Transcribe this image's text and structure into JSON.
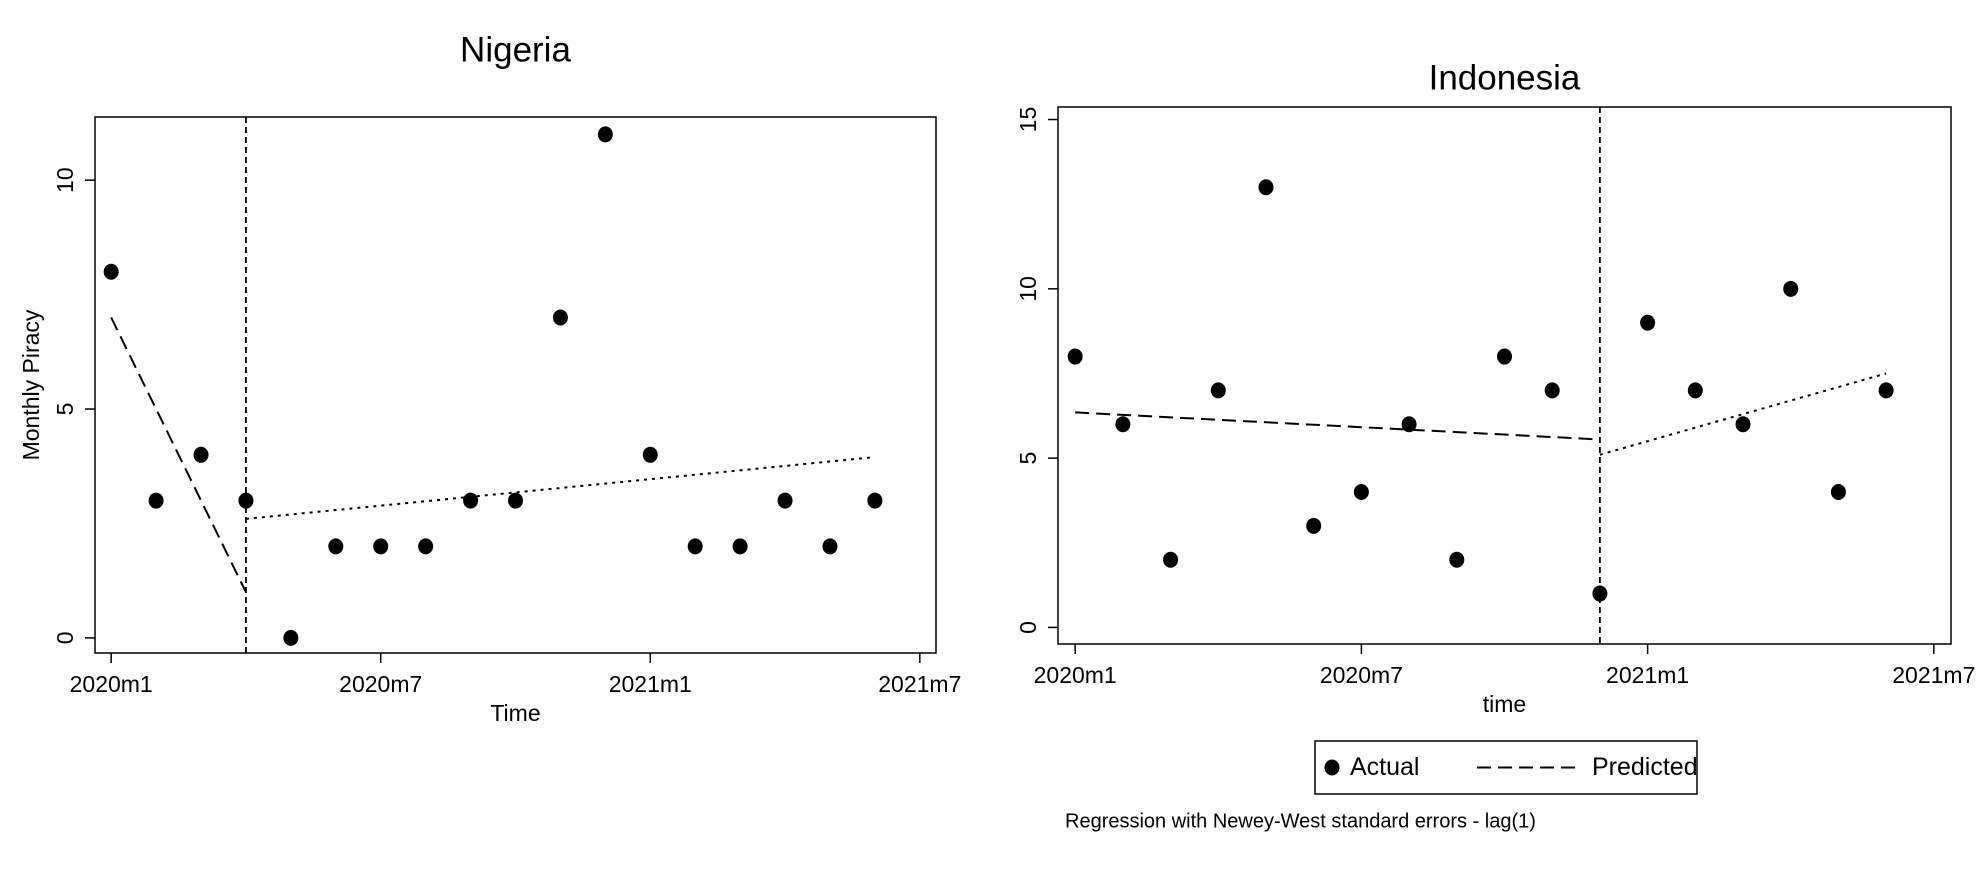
{
  "chart_data": [
    {
      "type": "scatter",
      "title": "Nigeria",
      "x_label": "Time",
      "y_label": "Monthly Piracy",
      "xlim": [
        "2020m1",
        "2021m7"
      ],
      "xticks": [
        "2020m1",
        "2020m7",
        "2021m1",
        "2021m7"
      ],
      "ylim": [
        -0.33,
        11.38
      ],
      "yticks": [
        0,
        5,
        10
      ],
      "intervention": "2020m4",
      "legend": false,
      "series": [
        {
          "name": "Actual",
          "color": "#000000",
          "style": "markers",
          "x": [
            "2020m1",
            "2020m2",
            "2020m3",
            "2020m4",
            "2020m5",
            "2020m6",
            "2020m7",
            "2020m8",
            "2020m9",
            "2020m10",
            "2020m11",
            "2020m12",
            "2021m1",
            "2021m2",
            "2021m3",
            "2021m4",
            "2021m5",
            "2021m6"
          ],
          "values": [
            8,
            3,
            4,
            3,
            0,
            2,
            2,
            2,
            3,
            3,
            7,
            11,
            4,
            2,
            2,
            3,
            2,
            3
          ]
        },
        {
          "name": "Predicted",
          "color": "#000000",
          "style": "dashed",
          "x": [
            "2020m1",
            "2020m4"
          ],
          "values": [
            7,
            1
          ]
        },
        {
          "color": "#000000",
          "style": "dotted",
          "x": [
            "2020m4",
            "2021m6"
          ],
          "values": [
            2.6,
            3.95
          ]
        }
      ]
    },
    {
      "type": "scatter",
      "title": "Indonesia",
      "x_label": "time",
      "xlim": [
        "2020m1",
        "2021m7"
      ],
      "xticks": [
        "2020m1",
        "2020m7",
        "2021m1",
        "2021m7"
      ],
      "ylim": [
        -0.49,
        15.37
      ],
      "yticks": [
        0,
        5,
        10,
        15
      ],
      "intervention": "2020m12",
      "legend": true,
      "note": "Regression with Newey-West standard errors - lag(1)",
      "series": [
        {
          "name": "Actual",
          "color": "#000000",
          "style": "markers",
          "x": [
            "2020m1",
            "2020m2",
            "2020m3",
            "2020m4",
            "2020m5",
            "2020m6",
            "2020m7",
            "2020m8",
            "2020m9",
            "2020m10",
            "2020m11",
            "2020m12",
            "2021m1",
            "2021m2",
            "2021m3",
            "2021m4",
            "2021m5",
            "2021m6"
          ],
          "values": [
            8,
            6,
            2,
            7,
            13,
            3,
            4,
            6,
            2,
            8,
            7,
            1,
            9,
            7,
            6,
            10,
            4,
            7
          ]
        },
        {
          "name": "Predicted",
          "color": "#000000",
          "style": "dashed",
          "x": [
            "2020m1",
            "2020m12"
          ],
          "values": [
            6.35,
            5.55
          ]
        },
        {
          "color": "#000000",
          "style": "dotted",
          "x": [
            "2020m12",
            "2021m6"
          ],
          "values": [
            5.1,
            7.5
          ]
        }
      ]
    }
  ]
}
